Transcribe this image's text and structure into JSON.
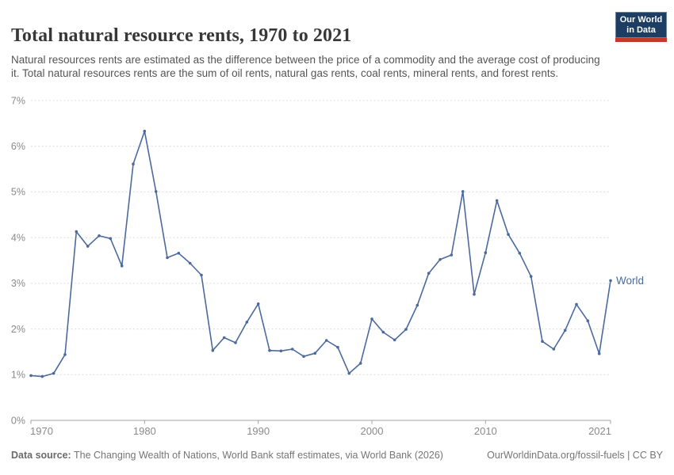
{
  "header": {
    "title": "Total natural resource rents, 1970 to 2021",
    "subtitle": "Natural resources rents are estimated as the difference between the price of a commodity and the average cost of producing it. Total natural resources rents are the sum of oil rents, natural gas rents, coal rents, mineral rents, and forest rents.",
    "logo": {
      "line1": "Our World",
      "line2": "in Data",
      "bg_color": "#1d3d63",
      "accent_color": "#c0392b"
    }
  },
  "chart_data": {
    "type": "line",
    "title": "Total natural resource rents, 1970 to 2021",
    "xlabel": "",
    "ylabel": "",
    "xlim": [
      1970,
      2021
    ],
    "ylim": [
      0,
      7
    ],
    "x_ticks": [
      1970,
      1980,
      1990,
      2000,
      2010,
      2021
    ],
    "y_tick_step": 1,
    "y_tick_suffix": "%",
    "grid": "horizontal-dashed",
    "legend": "end-of-line-label",
    "x": [
      1970,
      1971,
      1972,
      1973,
      1974,
      1975,
      1976,
      1977,
      1978,
      1979,
      1980,
      1981,
      1982,
      1983,
      1984,
      1985,
      1986,
      1987,
      1988,
      1989,
      1990,
      1991,
      1992,
      1993,
      1994,
      1995,
      1996,
      1997,
      1998,
      1999,
      2000,
      2001,
      2002,
      2003,
      2004,
      2005,
      2006,
      2007,
      2008,
      2009,
      2010,
      2011,
      2012,
      2013,
      2014,
      2015,
      2016,
      2017,
      2018,
      2019,
      2020,
      2021
    ],
    "series": [
      {
        "name": "World",
        "color": "#4c6a9c",
        "values": [
          0.98,
          0.96,
          1.03,
          1.44,
          4.13,
          3.81,
          4.04,
          3.98,
          3.38,
          5.61,
          6.33,
          5.01,
          3.56,
          3.66,
          3.44,
          3.18,
          1.53,
          1.81,
          1.7,
          2.15,
          2.55,
          1.53,
          1.52,
          1.56,
          1.4,
          1.47,
          1.75,
          1.6,
          1.03,
          1.25,
          2.22,
          1.93,
          1.76,
          1.99,
          2.52,
          3.22,
          3.52,
          3.62,
          5.01,
          2.76,
          3.67,
          4.81,
          4.07,
          3.66,
          3.15,
          1.73,
          1.56,
          1.97,
          2.54,
          2.18,
          1.46,
          3.06
        ]
      }
    ]
  },
  "footer": {
    "datasource_label": "Data source:",
    "datasource_text": " The Changing Wealth of Nations, World Bank staff estimates, via World Bank (2026)",
    "link": "OurWorldinData.org/fossil-fuels | CC BY"
  }
}
